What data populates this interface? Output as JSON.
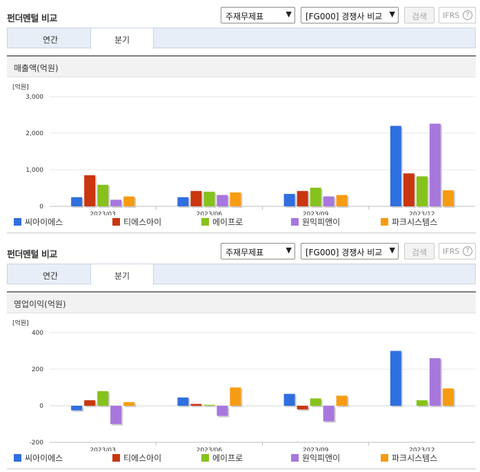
{
  "series_colors": [
    "#2f6fe0",
    "#c9360f",
    "#86c21c",
    "#a877dd",
    "#f79c12"
  ],
  "panels": [
    {
      "title": "펀더멘털 비교",
      "select1": "주재무제표",
      "select2": "[FG000] 경쟁사 비교",
      "search_label": "검색",
      "ifrs_label": "IFRS",
      "help_icon": "?",
      "tabs": [
        "연간",
        "분기"
      ],
      "chart_title": "매출액(억원)",
      "unit": "[억원]",
      "legend": [
        "씨아이에스",
        "티에스아이",
        "에이프로",
        "원익피앤이",
        "파크시스템스"
      ]
    },
    {
      "title": "펀더멘털 비교",
      "select1": "주재무제표",
      "select2": "[FG000] 경쟁사 비교",
      "search_label": "검색",
      "ifrs_label": "IFRS",
      "help_icon": "?",
      "tabs": [
        "연간",
        "분기"
      ],
      "chart_title": "영업이익(억원)",
      "unit": "[억원]",
      "legend": [
        "씨아이에스",
        "티에스아이",
        "에이프로",
        "원익피앤이",
        "파크시스템스"
      ]
    }
  ],
  "chart_data": [
    {
      "type": "bar",
      "title": "매출액(억원)",
      "ylabel": "[억원]",
      "ylim": [
        0,
        3000
      ],
      "yticks": [
        0,
        1000,
        2000,
        3000
      ],
      "ytick_labels": [
        "0",
        "1,000",
        "2,000",
        "3,000"
      ],
      "categories": [
        "2023/03",
        "2023/06",
        "2023/09",
        "2023/12"
      ],
      "legend_position": "bottom",
      "grid": true,
      "series": [
        {
          "name": "씨아이에스",
          "values": [
            250,
            250,
            340,
            2200
          ]
        },
        {
          "name": "티에스아이",
          "values": [
            850,
            420,
            420,
            900
          ]
        },
        {
          "name": "에이프로",
          "values": [
            590,
            400,
            510,
            820
          ]
        },
        {
          "name": "원익피앤이",
          "values": [
            180,
            310,
            270,
            2260
          ]
        },
        {
          "name": "파크시스템스",
          "values": [
            270,
            380,
            310,
            440
          ]
        }
      ]
    },
    {
      "type": "bar",
      "title": "영업이익(억원)",
      "ylabel": "[억원]",
      "ylim": [
        -200,
        400
      ],
      "yticks": [
        -200,
        0,
        200,
        400
      ],
      "ytick_labels": [
        "-200",
        "0",
        "200",
        "400"
      ],
      "categories": [
        "2023/03",
        "2023/06",
        "2023/09",
        "2023/12"
      ],
      "legend_position": "bottom",
      "grid": true,
      "series": [
        {
          "name": "씨아이에스",
          "values": [
            -25,
            45,
            65,
            300
          ]
        },
        {
          "name": "티에스아이",
          "values": [
            30,
            10,
            -20,
            0
          ]
        },
        {
          "name": "에이프로",
          "values": [
            80,
            5,
            40,
            30
          ]
        },
        {
          "name": "원익피앤이",
          "values": [
            -100,
            -55,
            -85,
            260
          ]
        },
        {
          "name": "파크시스템스",
          "values": [
            20,
            100,
            55,
            95
          ]
        }
      ]
    }
  ]
}
